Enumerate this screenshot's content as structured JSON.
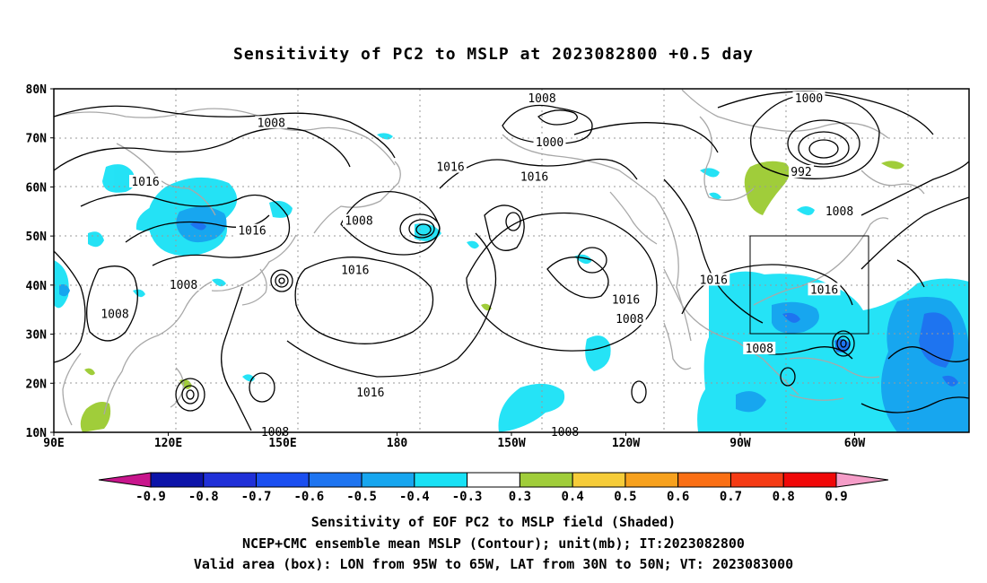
{
  "title": "Sensitivity of PC2 to MSLP at 2023082800 +0.5 day",
  "map": {
    "lat_labels": [
      "80N",
      "70N",
      "60N",
      "50N",
      "40N",
      "30N",
      "20N",
      "10N"
    ],
    "lon_labels": [
      "90E",
      "120E",
      "150E",
      "180",
      "150W",
      "120W",
      "90W",
      "60W"
    ],
    "contour_labels": [
      {
        "text": "1008",
        "lat": 73,
        "lon": 147
      },
      {
        "text": "1008",
        "lat": 78,
        "lon": -142
      },
      {
        "text": "1000",
        "lat": 69,
        "lon": -140
      },
      {
        "text": "1016",
        "lat": 64,
        "lon": -166
      },
      {
        "text": "1016",
        "lat": 62,
        "lon": -144
      },
      {
        "text": "1016",
        "lat": 61,
        "lon": 114
      },
      {
        "text": "1008",
        "lat": 53,
        "lon": 170
      },
      {
        "text": "1016",
        "lat": 51,
        "lon": 142
      },
      {
        "text": "1016",
        "lat": 43,
        "lon": 169
      },
      {
        "text": "1008",
        "lat": 40,
        "lon": 124
      },
      {
        "text": "1008",
        "lat": 34,
        "lon": 106
      },
      {
        "text": "1016",
        "lat": 18,
        "lon": 173
      },
      {
        "text": "1016",
        "lat": 37,
        "lon": -120
      },
      {
        "text": "1008",
        "lat": 33,
        "lon": -119
      },
      {
        "text": "1016",
        "lat": 41,
        "lon": -97
      },
      {
        "text": "1016",
        "lat": 39,
        "lon": -68
      },
      {
        "text": "1008",
        "lat": 27,
        "lon": -85
      },
      {
        "text": "1000",
        "lat": 78,
        "lon": -72
      },
      {
        "text": "992",
        "lat": 63,
        "lon": -74
      },
      {
        "text": "1008",
        "lat": 55,
        "lon": -64
      },
      {
        "text": "1008",
        "lat": 10,
        "lon": 148
      },
      {
        "text": "1008",
        "lat": 10,
        "lon": -136
      }
    ],
    "valid_box": {
      "lon_min": -95,
      "lon_max": -65,
      "lat_min": 30,
      "lat_max": 50
    }
  },
  "colorbar": {
    "labels": [
      "-0.9",
      "-0.8",
      "-0.7",
      "-0.6",
      "-0.5",
      "-0.4",
      "-0.3",
      "0.3",
      "0.4",
      "0.5",
      "0.6",
      "0.7",
      "0.8",
      "0.9"
    ],
    "colors": [
      "#0c13a8",
      "#2030d8",
      "#1b4ff0",
      "#1e74f0",
      "#17a6ef",
      "#19e1f5",
      "#ffffff",
      "#a0cd3a",
      "#f6cc39",
      "#f7a11e",
      "#fa6f14",
      "#f53b14",
      "#f00808"
    ],
    "low_extend_color": "#c8158c",
    "high_extend_color": "#f59dc8"
  },
  "captions": {
    "line1": "Sensitivity of EOF PC2 to MSLP field (Shaded)",
    "line2": "NCEP+CMC ensemble mean MSLP (Contour); unit(mb); IT:2023082800",
    "line3": "Valid area (box): LON from 95W to 65W, LAT from 30N to 50N; VT: 2023083000"
  }
}
